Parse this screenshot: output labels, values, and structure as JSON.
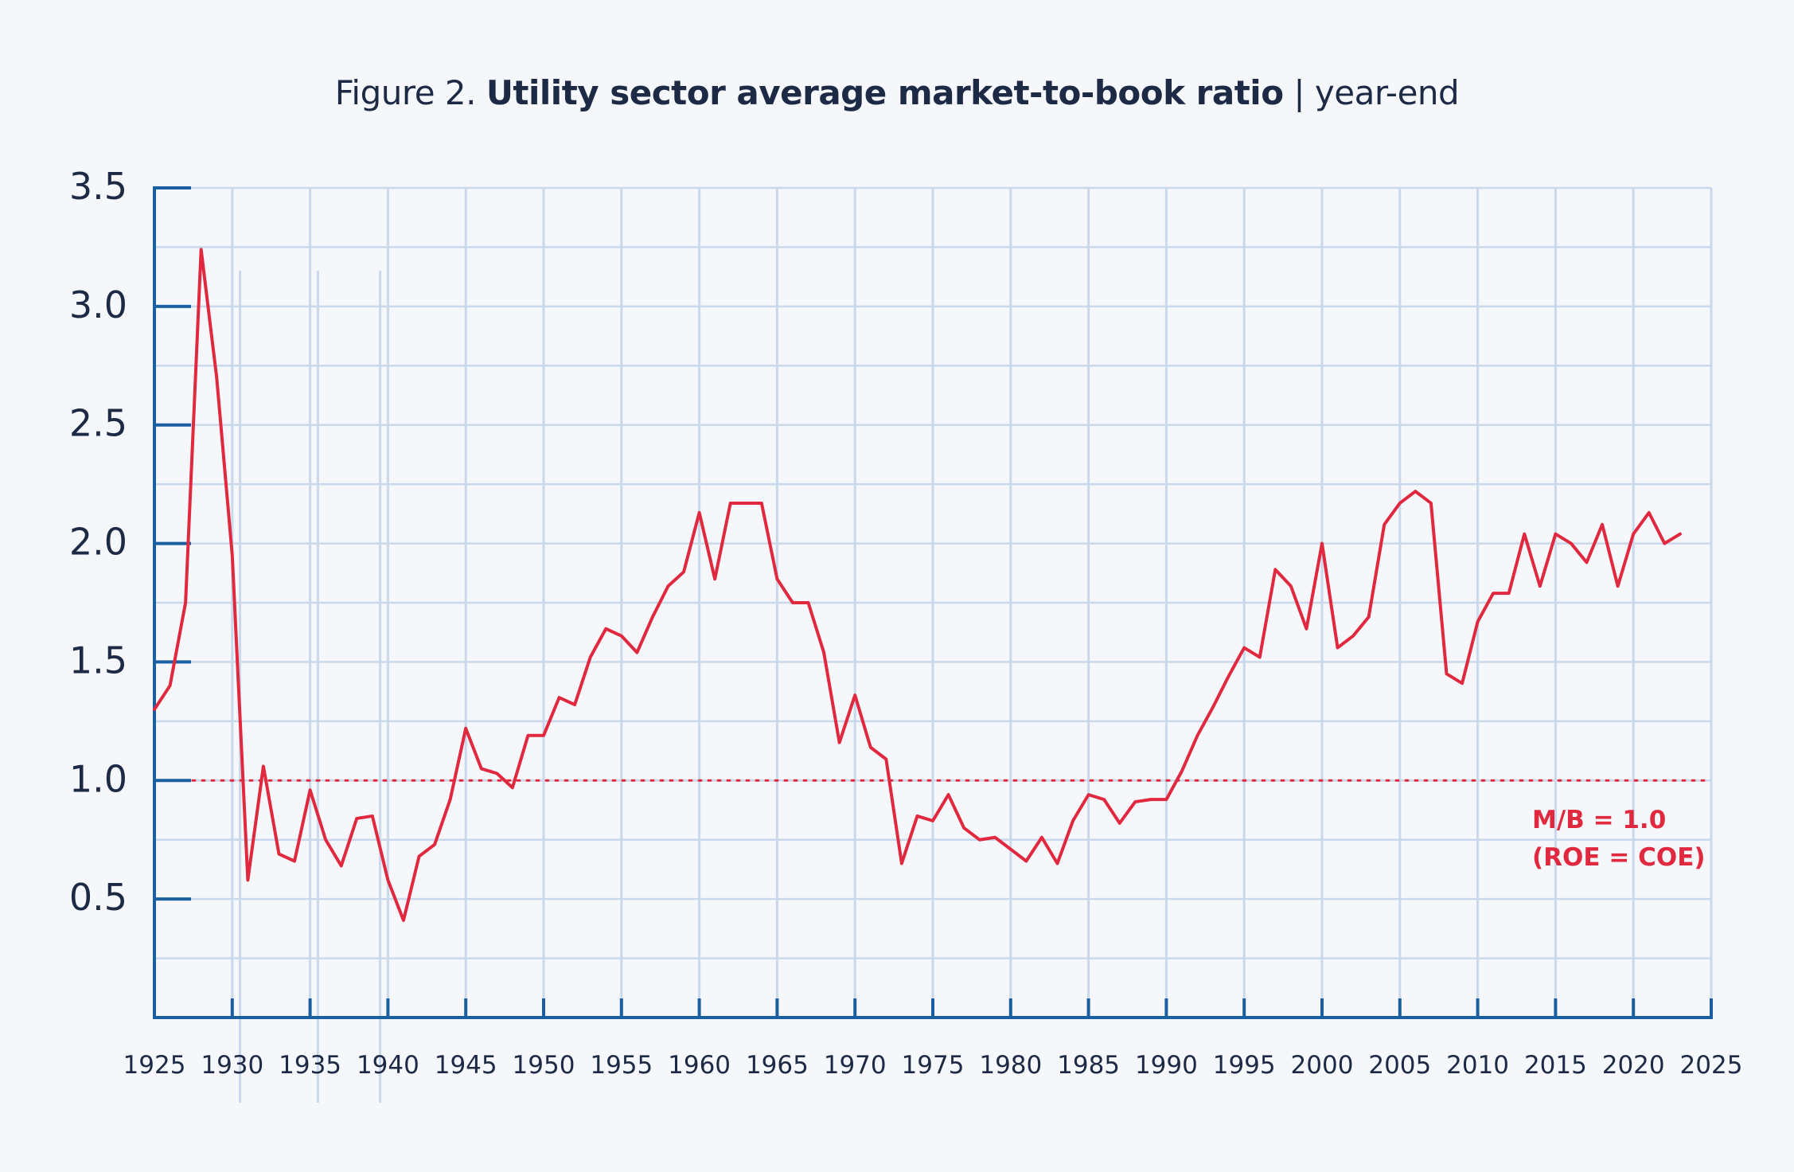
{
  "title": {
    "prefix": "Figure 2.",
    "main": "Utility sector average market-to-book ratio",
    "suffix": "| year-end"
  },
  "chart_data": {
    "type": "line",
    "title": "Figure 2. Utility sector average market-to-book ratio | year-end",
    "xlabel": "",
    "ylabel": "",
    "xlim": [
      1925,
      2025
    ],
    "ylim": [
      0,
      3.5
    ],
    "x_ticks": [
      "1925",
      "1930",
      "1935",
      "1940",
      "1945",
      "1950",
      "1955",
      "1960",
      "1965",
      "1970",
      "1975",
      "1980",
      "1985",
      "1990",
      "1995",
      "2000",
      "2005",
      "2010",
      "2015",
      "2020",
      "2025"
    ],
    "y_ticks": [
      "0.5",
      "1.0",
      "1.5",
      "2.0",
      "2.5",
      "3.0",
      "3.5"
    ],
    "grid": true,
    "colors": {
      "line": "#e0283e",
      "axis": "#1a5fa0",
      "grid": "#c9d8ea",
      "text": "#1d2a45"
    },
    "reference_line": {
      "y": 1.0,
      "style": "dotted",
      "label_line1": "M/B = 1.0",
      "label_line2": "(ROE = COE)"
    },
    "series": [
      {
        "x": [
          1925,
          1926,
          1927,
          1928,
          1929,
          1930,
          1931,
          1932,
          1933,
          1934,
          1935,
          1936,
          1937,
          1938,
          1939,
          1940,
          1941,
          1942,
          1943,
          1944,
          1945,
          1946,
          1947,
          1948,
          1949,
          1950,
          1951,
          1952,
          1953,
          1954,
          1955,
          1956,
          1957,
          1958,
          1959,
          1960,
          1961,
          1962,
          1963,
          1964,
          1965,
          1966,
          1967,
          1968,
          1969,
          1970,
          1971,
          1972,
          1973,
          1974,
          1975,
          1976,
          1977,
          1978,
          1979,
          1980,
          1981,
          1982,
          1983,
          1984,
          1985,
          1986,
          1987,
          1988,
          1989,
          1990,
          1991,
          1992,
          1993,
          1994,
          1995,
          1996,
          1997,
          1998,
          1999,
          2000,
          2001,
          2002,
          2003,
          2004,
          2005,
          2006,
          2007,
          2008,
          2009,
          2010,
          2011,
          2012,
          2013,
          2014,
          2015,
          2016,
          2017,
          2018,
          2019,
          2020,
          2021,
          2022,
          2023
        ],
        "y": [
          1.3,
          1.4,
          1.75,
          3.24,
          2.7,
          1.95,
          0.58,
          1.06,
          0.69,
          0.66,
          0.96,
          0.75,
          0.64,
          0.84,
          0.85,
          0.58,
          0.41,
          0.68,
          0.73,
          0.92,
          1.22,
          1.05,
          1.03,
          0.97,
          1.19,
          1.19,
          1.35,
          1.32,
          1.52,
          1.64,
          1.61,
          1.54,
          1.69,
          1.82,
          1.88,
          2.13,
          1.85,
          2.17,
          2.17,
          2.17,
          1.85,
          1.75,
          1.75,
          1.54,
          1.16,
          1.36,
          1.14,
          1.09,
          0.65,
          0.85,
          0.83,
          0.94,
          0.8,
          0.75,
          0.76,
          0.71,
          0.66,
          0.76,
          0.65,
          0.83,
          0.94,
          0.92,
          0.82,
          0.91,
          0.92,
          0.92,
          1.04,
          1.19,
          1.31,
          1.44,
          1.56,
          1.52,
          1.89,
          1.82,
          1.64,
          2.0,
          1.56,
          1.61,
          1.69,
          2.08,
          2.17,
          2.22,
          2.17,
          1.45,
          1.41,
          1.67,
          1.79,
          1.79,
          2.04,
          1.82,
          2.04,
          2.0,
          1.92,
          2.08,
          1.82,
          2.04,
          2.13,
          2.0,
          2.04
        ]
      }
    ]
  }
}
